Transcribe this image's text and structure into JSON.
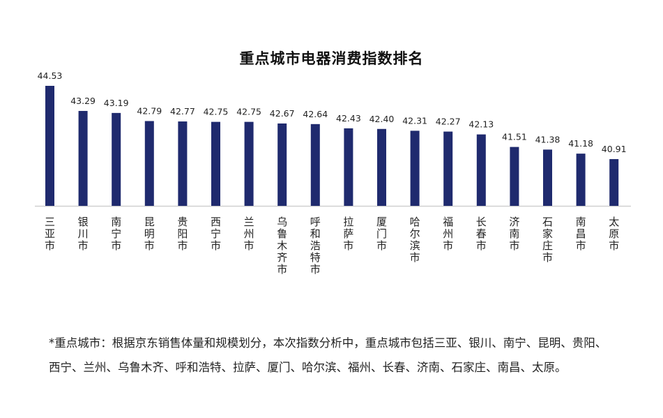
{
  "chart_data": {
    "type": "bar",
    "title": "重点城市电器消费指数排名",
    "xlabel": "",
    "ylabel": "",
    "categories": [
      "三亚市",
      "银川市",
      "南宁市",
      "昆明市",
      "贵阳市",
      "西宁市",
      "兰州市",
      "乌鲁木齐市",
      "呼和浩特市",
      "拉萨市",
      "厦门市",
      "哈尔滨市",
      "福州市",
      "长春市",
      "济南市",
      "石家庄市",
      "南昌市",
      "太原市"
    ],
    "values": [
      44.53,
      43.29,
      43.19,
      42.79,
      42.77,
      42.75,
      42.75,
      42.67,
      42.64,
      42.43,
      42.4,
      42.31,
      42.27,
      42.13,
      41.51,
      41.38,
      41.18,
      40.91
    ],
    "value_labels": [
      "44.53",
      "43.29",
      "43.19",
      "42.79",
      "42.77",
      "42.75",
      "42.75",
      "42.67",
      "42.64",
      "42.43",
      "42.40",
      "42.31",
      "42.27",
      "42.13",
      "41.51",
      "41.38",
      "41.18",
      "40.91"
    ],
    "ylim": [
      38.6,
      44.53
    ],
    "grid": false,
    "legend": "none",
    "bar_color": "#1f2a6e",
    "baseline_color": "#d0d0d0"
  },
  "footnote": "*重点城市：根据京东销售体量和规模划分，本次指数分析中，重点城市包括三亚、银川、南宁、昆明、贵阳、西宁、兰州、乌鲁木齐、呼和浩特、拉萨、厦门、哈尔滨、福州、长春、济南、石家庄、南昌、太原。"
}
